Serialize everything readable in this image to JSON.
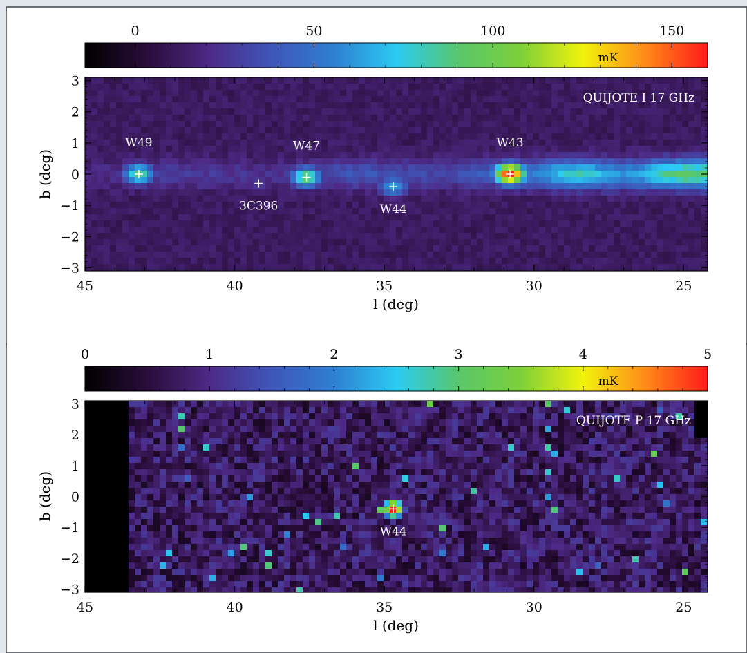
{
  "chart_data": [
    {
      "type": "heatmap",
      "title": "",
      "panel_label": "QUIJOTE I 17 GHz",
      "xlabel": "l (deg)",
      "ylabel": "b (deg)",
      "xlim": [
        45,
        24.2
      ],
      "ylim": [
        -3.1,
        3.1
      ],
      "x_ticks": [
        45,
        40,
        35,
        30,
        25
      ],
      "y_ticks": [
        -3,
        -2,
        -1,
        0,
        1,
        2,
        3
      ],
      "colorbar": {
        "unit": "mK",
        "range": [
          -14,
          160
        ],
        "ticks": [
          0,
          50,
          100,
          150
        ],
        "colormap": [
          "#000000",
          "#2a0d3a",
          "#4d2a86",
          "#3f56b8",
          "#2f7fd2",
          "#2bcbf2",
          "#58c66b",
          "#7dd03a",
          "#f2f20c",
          "#ff8a19",
          "#ff1a1a"
        ]
      },
      "background_level_mK": 12,
      "plane_emission": [
        {
          "l": 45,
          "peak_mK": 18
        },
        {
          "l": 42,
          "peak_mK": 30
        },
        {
          "l": 39,
          "peak_mK": 22
        },
        {
          "l": 36,
          "peak_mK": 38
        },
        {
          "l": 33,
          "peak_mK": 32
        },
        {
          "l": 30,
          "peak_mK": 56
        },
        {
          "l": 28.5,
          "peak_mK": 82
        },
        {
          "l": 27,
          "peak_mK": 58
        },
        {
          "l": 25,
          "peak_mK": 95
        },
        {
          "l": 24.2,
          "peak_mK": 90
        }
      ],
      "sources": [
        {
          "name": "W49",
          "l": 43.2,
          "b": 0.0,
          "peak_mK": 88,
          "label_pos": "above"
        },
        {
          "name": "3C396",
          "l": 39.2,
          "b": -0.3,
          "peak_mK": 25,
          "label_pos": "below"
        },
        {
          "name": "W47",
          "l": 37.6,
          "b": -0.1,
          "peak_mK": 92,
          "label_pos": "above"
        },
        {
          "name": "W44",
          "l": 34.7,
          "b": -0.4,
          "peak_mK": 62,
          "label_pos": "below"
        },
        {
          "name": "W43",
          "l": 30.8,
          "b": 0.0,
          "peak_mK": 160,
          "label_pos": "above"
        }
      ]
    },
    {
      "type": "heatmap",
      "title": "",
      "panel_label": "QUIJOTE P 17 GHz",
      "xlabel": "l (deg)",
      "ylabel": "b (deg)",
      "xlim": [
        45,
        24.2
      ],
      "ylim": [
        -3.1,
        3.1
      ],
      "x_ticks": [
        45,
        40,
        35,
        30,
        25
      ],
      "y_ticks": [
        -3,
        -2,
        -1,
        0,
        1,
        2,
        3
      ],
      "colorbar": {
        "unit": "mK",
        "range": [
          0,
          5
        ],
        "ticks": [
          0,
          1,
          2,
          3,
          4,
          5
        ],
        "colormap": [
          "#000000",
          "#2a0d3a",
          "#4d2a86",
          "#3f56b8",
          "#2f7fd2",
          "#2bcbf2",
          "#58c66b",
          "#7dd03a",
          "#f2f20c",
          "#ff8a19",
          "#ff1a1a"
        ]
      },
      "background_level_mK": 0.75,
      "no_data_l_ranges": [
        [
          45,
          43.5
        ]
      ],
      "sources": [
        {
          "name": "W44",
          "l": 34.7,
          "b": -0.4,
          "peak_mK": 5,
          "label_pos": "below"
        }
      ]
    }
  ]
}
